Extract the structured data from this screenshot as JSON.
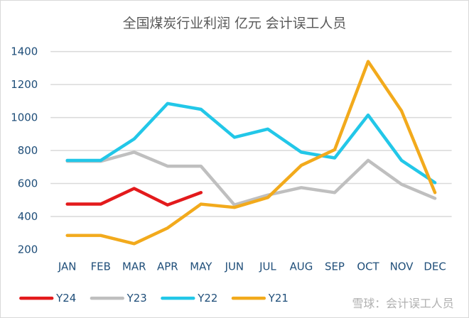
{
  "chart_data": {
    "type": "line",
    "title": "全国煤炭行业利润 亿元 会计误工人员",
    "categories": [
      "JAN",
      "FEB",
      "MAR",
      "APR",
      "MAY",
      "JUN",
      "JUL",
      "AUG",
      "SEP",
      "OCT",
      "NOV",
      "DEC"
    ],
    "ylim": [
      200,
      1400
    ],
    "yticks": [
      200,
      400,
      600,
      800,
      1000,
      1200,
      1400
    ],
    "grid": true,
    "legend_position": "bottom",
    "series": [
      {
        "name": "Y24",
        "color": "#e31a1c",
        "values": [
          475,
          475,
          570,
          470,
          545,
          null,
          null,
          null,
          null,
          null,
          null,
          null
        ]
      },
      {
        "name": "Y23",
        "color": "#bfbfbf",
        "values": [
          735,
          735,
          790,
          705,
          705,
          470,
          530,
          575,
          545,
          740,
          595,
          510
        ]
      },
      {
        "name": "Y22",
        "color": "#22c7e8",
        "values": [
          740,
          740,
          870,
          1085,
          1050,
          880,
          930,
          790,
          755,
          1015,
          740,
          605
        ]
      },
      {
        "name": "Y21",
        "color": "#f2aa1c",
        "values": [
          285,
          285,
          235,
          330,
          475,
          455,
          515,
          710,
          805,
          1340,
          1040,
          545
        ]
      }
    ]
  },
  "watermark": "雪球：会计误工人员"
}
